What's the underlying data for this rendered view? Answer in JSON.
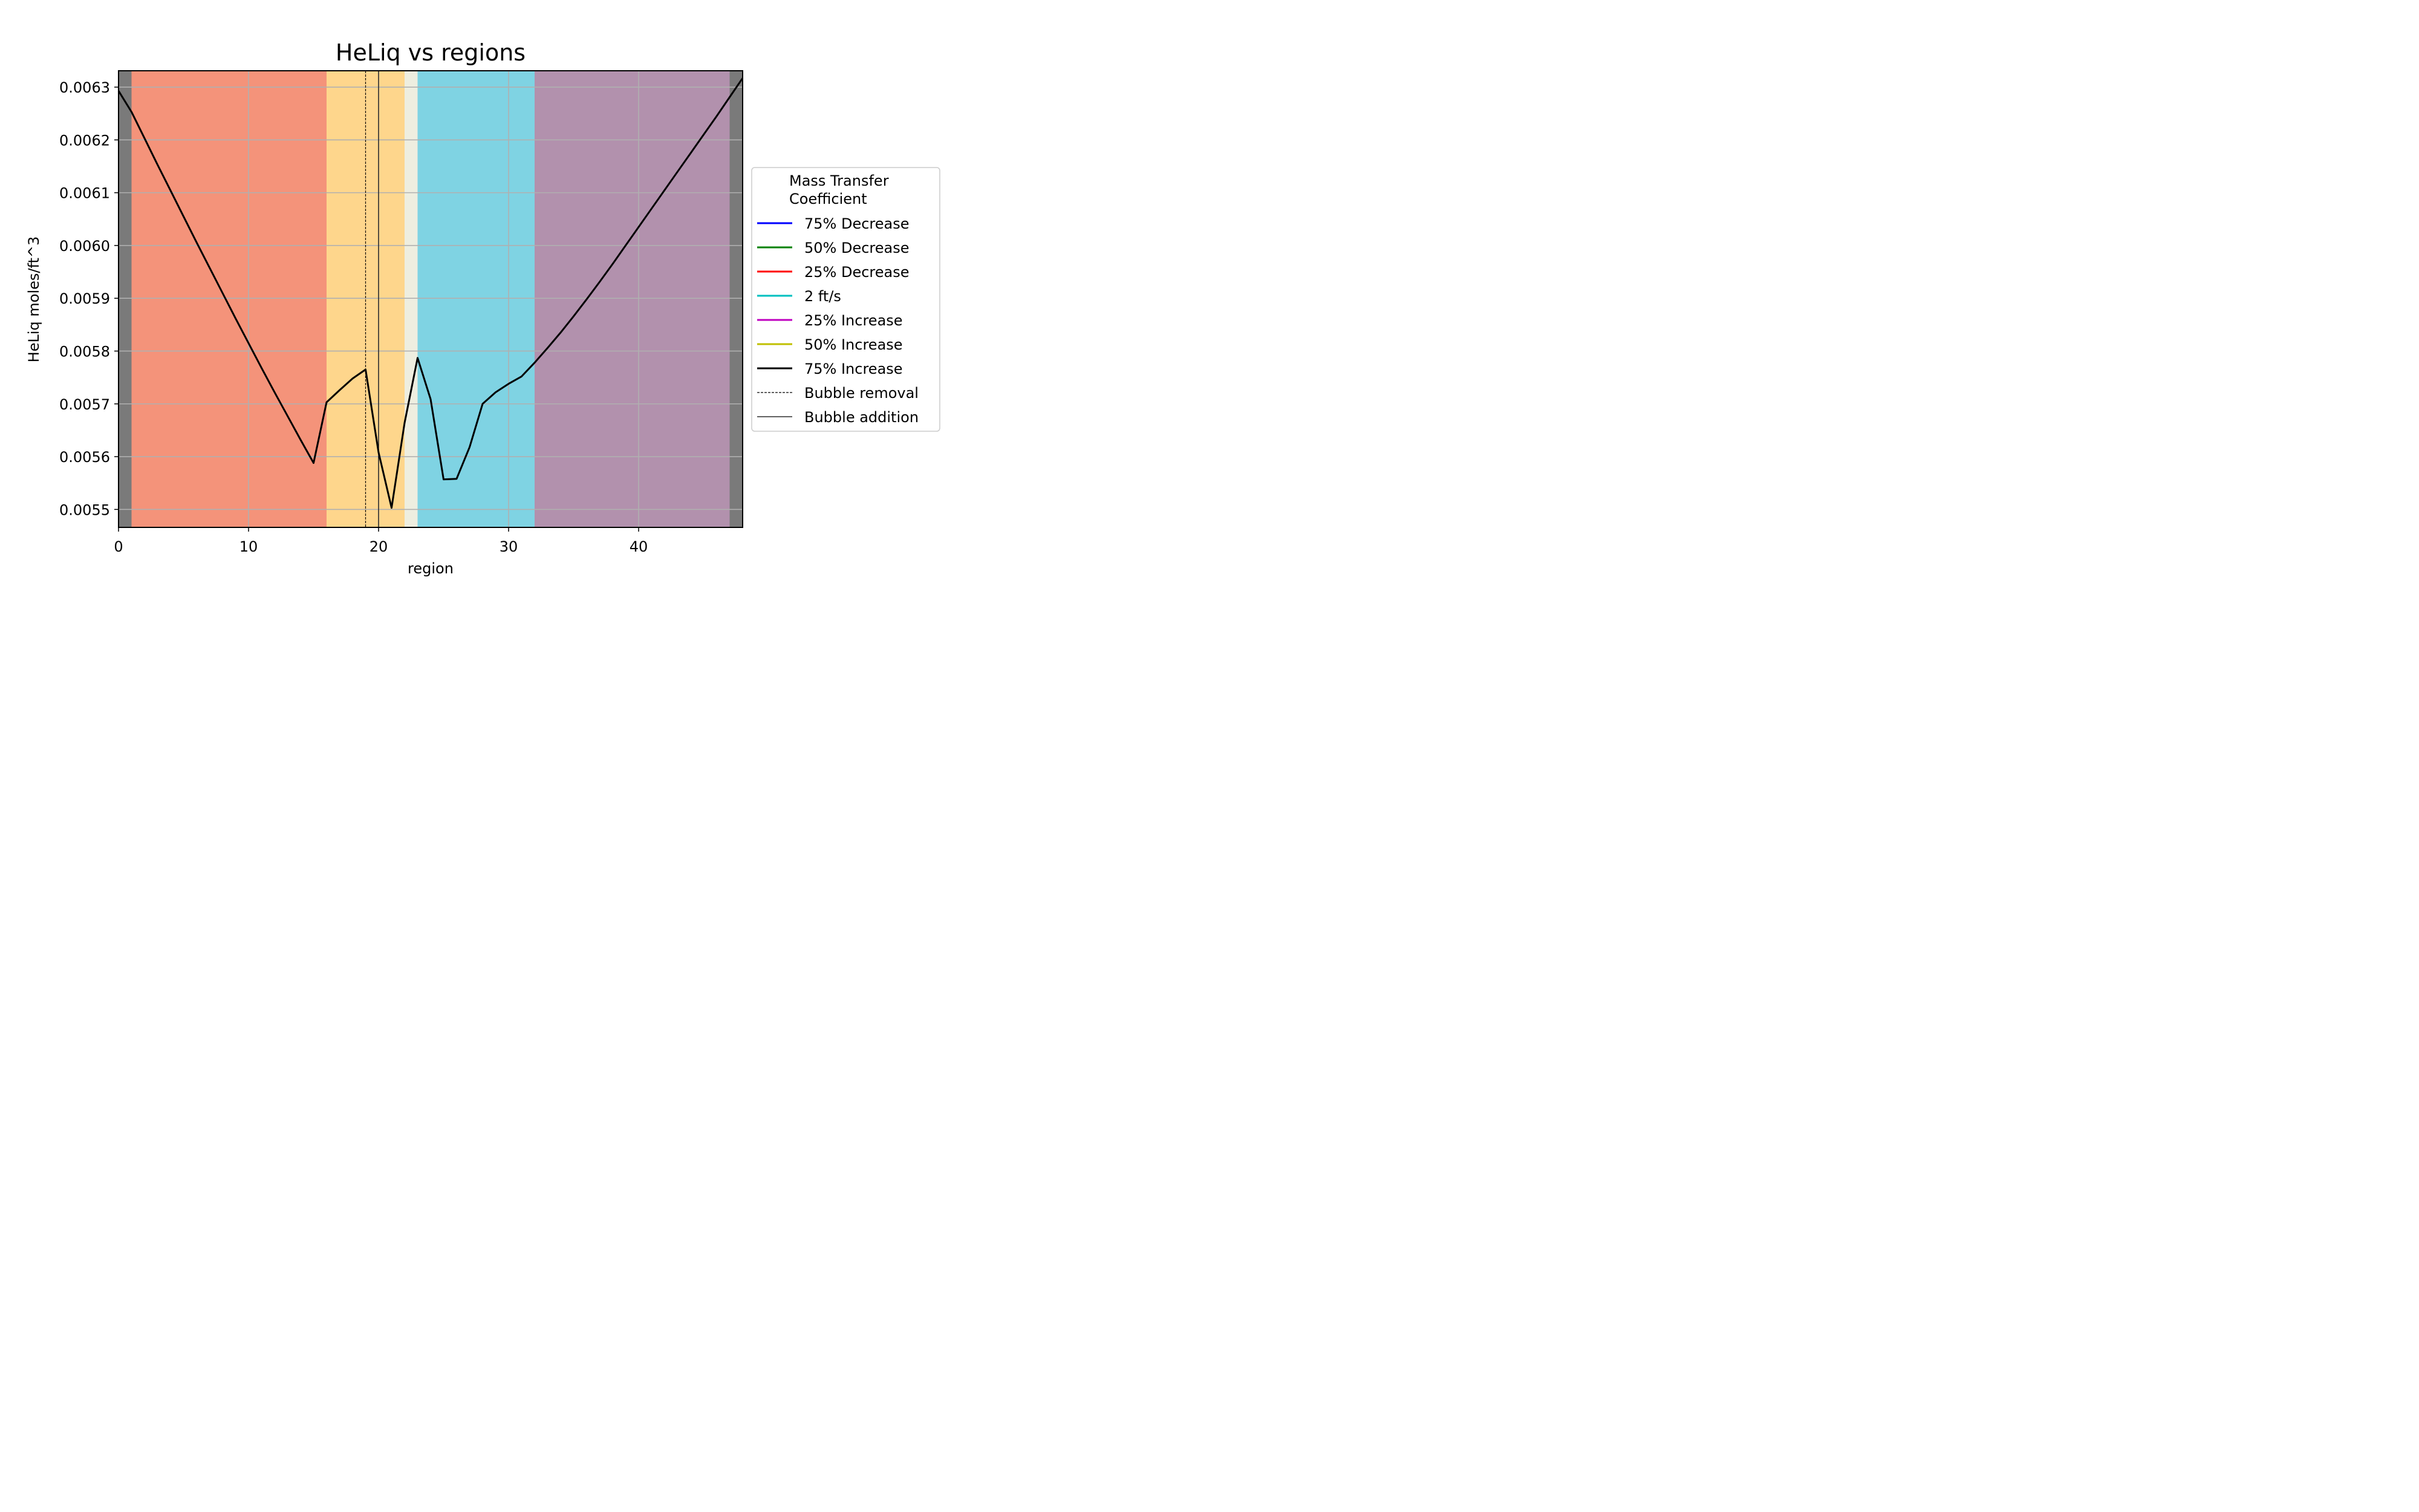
{
  "chart_data": {
    "type": "line",
    "title": "HeLiq vs regions",
    "xlabel": "region",
    "ylabel": "HeLiq moles/ft^3",
    "xlim": [
      0,
      48
    ],
    "ylim": [
      0.005466,
      0.006331
    ],
    "x_ticks": [
      0,
      10,
      20,
      30,
      40
    ],
    "y_ticks": [
      0.0055,
      0.0056,
      0.0057,
      0.0058,
      0.0059,
      0.006,
      0.0061,
      0.0062,
      0.0063
    ],
    "grid": true,
    "background_regions": [
      {
        "from": 0,
        "to": 1,
        "color": "#7a7a7a"
      },
      {
        "from": 1,
        "to": 16,
        "color": "#f4937a"
      },
      {
        "from": 16,
        "to": 22,
        "color": "#fed68c"
      },
      {
        "from": 22,
        "to": 23,
        "color": "#eeeee0"
      },
      {
        "from": 23,
        "to": 32,
        "color": "#7fd3e3"
      },
      {
        "from": 32,
        "to": 47,
        "color": "#b291ad"
      },
      {
        "from": 47,
        "to": 48,
        "color": "#7a7a7a"
      }
    ],
    "vertical_lines": [
      {
        "x": 19,
        "style": "dashed",
        "label": "Bubble removal"
      },
      {
        "x": 20,
        "style": "solid",
        "label": "Bubble addition"
      }
    ],
    "series": [
      {
        "name": "75% Decrease",
        "color": "#0000ff",
        "x": [],
        "y": []
      },
      {
        "name": "50% Decrease",
        "color": "#008000",
        "x": [],
        "y": []
      },
      {
        "name": "25% Decrease",
        "color": "#ff0000",
        "x": [],
        "y": []
      },
      {
        "name": "2 ft/s",
        "color": "#00bfbf",
        "x": [],
        "y": []
      },
      {
        "name": "25% Increase",
        "color": "#bf00bf",
        "x": [],
        "y": []
      },
      {
        "name": "50% Increase",
        "color": "#bfbf00",
        "x": [],
        "y": []
      },
      {
        "name": "75% Increase",
        "color": "#000000",
        "x": [
          0,
          1,
          2,
          3,
          4,
          5,
          6,
          7,
          8,
          9,
          10,
          11,
          12,
          13,
          14,
          15,
          16,
          17,
          18,
          19,
          20,
          21,
          22,
          23,
          24,
          25,
          26,
          27,
          28,
          29,
          30,
          31,
          32,
          33,
          34,
          35,
          36,
          37,
          38,
          39,
          40,
          41,
          42,
          43,
          44,
          45,
          46,
          47,
          48
        ],
        "y": [
          0.006293,
          0.006253,
          0.006203,
          0.006153,
          0.006104,
          0.006055,
          0.006006,
          0.005958,
          0.00591,
          0.005862,
          0.005815,
          0.005768,
          0.005722,
          0.005677,
          0.005632,
          0.005588,
          0.005703,
          0.005726,
          0.005748,
          0.005765,
          0.005608,
          0.005503,
          0.005664,
          0.005787,
          0.005709,
          0.005557,
          0.005558,
          0.005618,
          0.0057,
          0.005722,
          0.005738,
          0.005752,
          0.005778,
          0.005806,
          0.005835,
          0.005866,
          0.005898,
          0.005931,
          0.005965,
          0.006,
          0.006035,
          0.00607,
          0.006105,
          0.00614,
          0.006175,
          0.00621,
          0.006245,
          0.006281,
          0.006317
        ]
      }
    ],
    "legend": {
      "title": "Mass Transfer\nCoefficient",
      "placement": "outside-right",
      "entries": [
        "75% Decrease",
        "50% Decrease",
        "25% Decrease",
        "2 ft/s",
        "25% Increase",
        "50% Increase",
        "75% Increase",
        "Bubble removal",
        "Bubble addition"
      ]
    }
  }
}
